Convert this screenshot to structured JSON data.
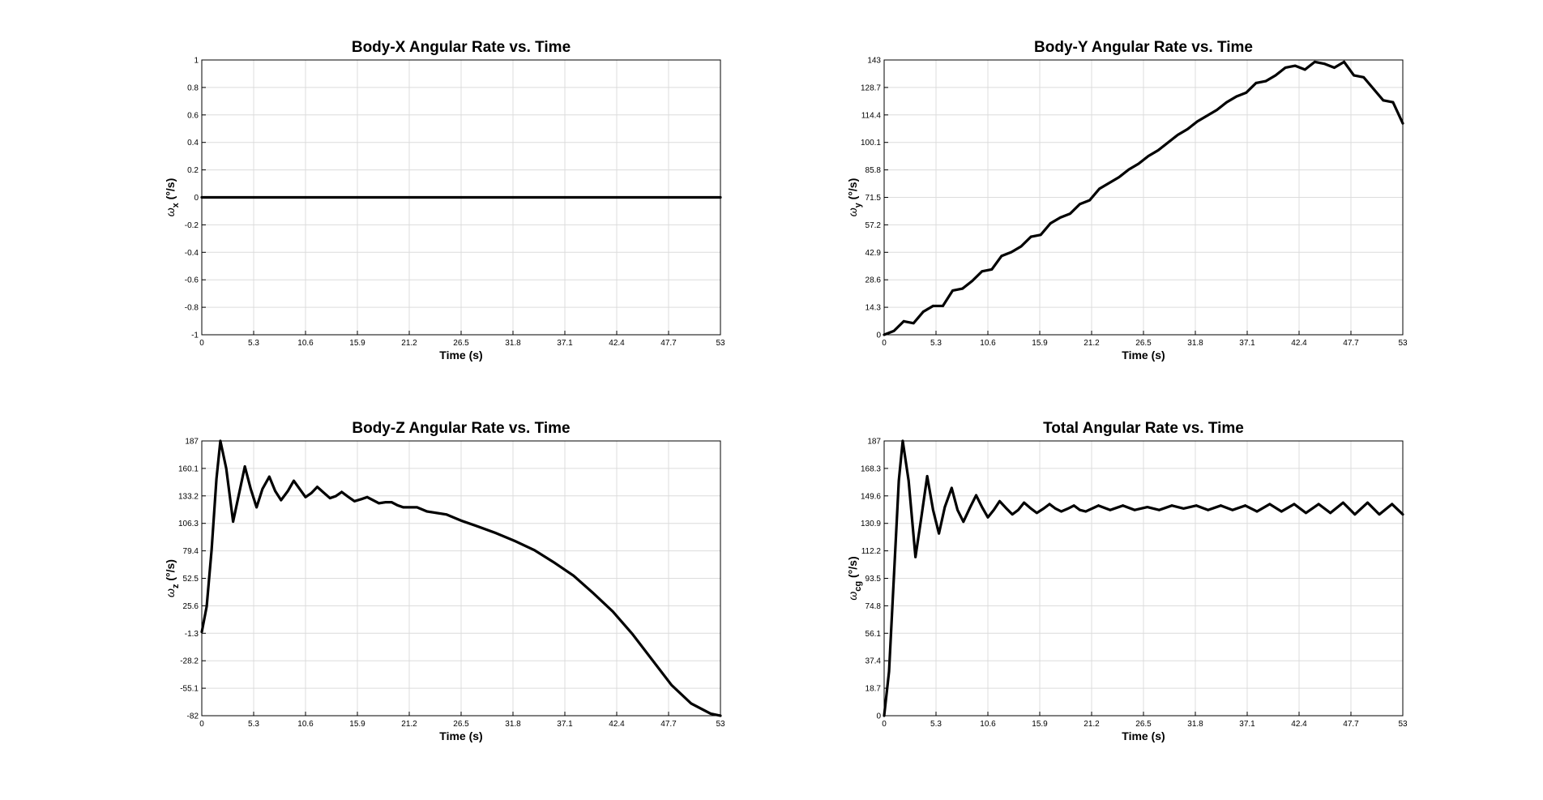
{
  "chart_data": [
    {
      "type": "line",
      "title": "Body-X Angular Rate vs. Time",
      "xlabel": "Time (s)",
      "ylabel": {
        "symbol": "ω",
        "subscript": "x",
        "unit": " (°/s)"
      },
      "color": "#000000",
      "grid": true,
      "xlim": [
        0,
        53
      ],
      "xticks": [
        0,
        5.3,
        10.6,
        15.9,
        21.2,
        26.5,
        31.8,
        37.1,
        42.4,
        47.7,
        53
      ],
      "ylim": [
        -1,
        1
      ],
      "yticks": [
        -1,
        -0.8,
        -0.6,
        -0.4,
        -0.2,
        0,
        0.2,
        0.4,
        0.6,
        0.8,
        1
      ],
      "x": [
        0,
        1,
        2,
        3,
        4,
        5,
        6,
        7,
        8,
        9,
        10,
        11,
        12,
        13,
        14,
        15,
        16,
        17,
        18,
        19,
        20,
        21,
        22,
        23,
        24,
        25,
        26,
        27,
        28,
        29,
        30,
        31,
        32,
        33,
        34,
        35,
        36,
        37,
        38,
        39,
        40,
        41,
        42,
        43,
        44,
        45,
        46,
        47,
        48,
        49,
        50,
        51,
        52,
        53
      ],
      "values": [
        0,
        0,
        0,
        0,
        0,
        0,
        0,
        0,
        0,
        0,
        0,
        0,
        0,
        0,
        0,
        0,
        0,
        0,
        0,
        0,
        0,
        0,
        0,
        0,
        0,
        0,
        0,
        0,
        0,
        0,
        0,
        0,
        0,
        0,
        0,
        0,
        0,
        0,
        0,
        0,
        0,
        0,
        0,
        0,
        0,
        0,
        0,
        0,
        0,
        0,
        0,
        0,
        0,
        0
      ]
    },
    {
      "type": "line",
      "title": "Body-Y Angular Rate vs. Time",
      "xlabel": "Time (s)",
      "ylabel": {
        "symbol": "ω",
        "subscript": "y",
        "unit": " (°/s)"
      },
      "color": "#000000",
      "grid": true,
      "xlim": [
        0,
        53
      ],
      "xticks": [
        0,
        5.3,
        10.6,
        15.9,
        21.2,
        26.5,
        31.8,
        37.1,
        42.4,
        47.7,
        53
      ],
      "ylim": [
        0,
        143
      ],
      "yticks": [
        0,
        14.3,
        28.6,
        42.9,
        57.2,
        71.5,
        85.8,
        100.1,
        114.4,
        128.7,
        143
      ],
      "x": [
        0,
        1,
        2,
        3,
        4,
        5,
        6,
        7,
        8,
        9,
        10,
        11,
        12,
        13,
        14,
        15,
        16,
        17,
        18,
        19,
        20,
        21,
        22,
        23,
        24,
        25,
        26,
        27,
        28,
        29,
        30,
        31,
        32,
        33,
        34,
        35,
        36,
        37,
        38,
        39,
        40,
        41,
        42,
        43,
        44,
        45,
        46,
        47,
        48,
        49,
        50,
        51,
        52,
        53
      ],
      "values": [
        0,
        2,
        7,
        6,
        12,
        15,
        15,
        23,
        24,
        28,
        33,
        34,
        41,
        43,
        46,
        51,
        52,
        58,
        61,
        63,
        68,
        70,
        76,
        79,
        82,
        86,
        89,
        93,
        96,
        100,
        104,
        107,
        111,
        114,
        117,
        121,
        124,
        126,
        131,
        132,
        135,
        139,
        140,
        138,
        142,
        141,
        139,
        142,
        135,
        134,
        128,
        122,
        121,
        110
      ]
    },
    {
      "type": "line",
      "title": "Body-Z Angular Rate vs. Time",
      "xlabel": "Time (s)",
      "ylabel": {
        "symbol": "ω",
        "subscript": "z",
        "unit": " (°/s)"
      },
      "color": "#000000",
      "grid": true,
      "xlim": [
        0,
        53
      ],
      "xticks": [
        0,
        5.3,
        10.6,
        15.9,
        21.2,
        26.5,
        31.8,
        37.1,
        42.4,
        47.7,
        53
      ],
      "ylim": [
        -82,
        187
      ],
      "yticks": [
        -82,
        -55.1,
        -28.2,
        -1.3,
        25.6,
        52.5,
        79.4,
        106.3,
        133.2,
        160.1,
        187
      ],
      "x": [
        0,
        0.5,
        1,
        1.5,
        1.9,
        2.5,
        3.2,
        3.8,
        4.4,
        5,
        5.6,
        6.2,
        6.9,
        7.5,
        8.1,
        8.8,
        9.4,
        10,
        10.6,
        11.2,
        11.8,
        12.5,
        13.1,
        13.7,
        14.3,
        15,
        15.6,
        16.3,
        16.9,
        17.5,
        18.1,
        18.8,
        19.4,
        20,
        20.6,
        22,
        23,
        25,
        26.5,
        28,
        30,
        32,
        34,
        36,
        38,
        40,
        42,
        44,
        46,
        48,
        50,
        52,
        53
      ],
      "values": [
        0,
        25,
        80,
        150,
        187,
        160,
        108,
        135,
        162,
        140,
        122,
        140,
        152,
        138,
        129,
        138,
        148,
        140,
        132,
        136,
        142,
        136,
        131,
        133,
        137,
        132,
        128,
        130,
        132,
        129,
        126,
        127,
        127,
        124,
        122,
        122,
        118,
        115,
        109,
        104,
        97,
        89,
        80,
        68,
        55,
        38,
        20,
        -2,
        -27,
        -52,
        -70,
        -80,
        -82
      ]
    },
    {
      "type": "line",
      "title": "Total Angular Rate vs. Time",
      "xlabel": "Time (s)",
      "ylabel": {
        "symbol": "ω",
        "subscript": "cg",
        "unit": " (°/s)"
      },
      "color": "#000000",
      "grid": true,
      "xlim": [
        0,
        53
      ],
      "xticks": [
        0,
        5.3,
        10.6,
        15.9,
        21.2,
        26.5,
        31.8,
        37.1,
        42.4,
        47.7,
        53
      ],
      "ylim": [
        0,
        187
      ],
      "yticks": [
        0,
        18.7,
        37.4,
        56.1,
        74.8,
        93.5,
        112.2,
        130.9,
        149.6,
        168.3,
        187
      ],
      "x": [
        0,
        0.5,
        1,
        1.5,
        1.9,
        2.5,
        3.2,
        3.8,
        4.4,
        5,
        5.6,
        6.2,
        6.9,
        7.5,
        8.1,
        8.8,
        9.4,
        10,
        10.6,
        11.2,
        11.8,
        12.5,
        13.1,
        13.7,
        14.3,
        15,
        15.6,
        16.3,
        16.9,
        17.5,
        18.1,
        18.8,
        19.4,
        20,
        20.6,
        21.9,
        23.1,
        24.4,
        25.6,
        26.9,
        28.1,
        29.4,
        30.6,
        31.9,
        33.1,
        34.4,
        35.6,
        36.9,
        38.1,
        39.4,
        40.6,
        41.9,
        43.1,
        44.4,
        45.6,
        46.9,
        48.1,
        49.4,
        50.6,
        51.9,
        53
      ],
      "values": [
        0,
        30,
        95,
        160,
        187,
        160,
        108,
        135,
        163,
        140,
        124,
        142,
        155,
        140,
        132,
        142,
        150,
        142,
        135,
        140,
        146,
        141,
        137,
        140,
        145,
        141,
        138,
        141,
        144,
        141,
        139,
        141,
        143,
        140,
        139,
        143,
        140,
        143,
        140,
        142,
        140,
        143,
        141,
        143,
        140,
        143,
        140,
        143,
        139,
        144,
        139,
        144,
        138,
        144,
        138,
        145,
        137,
        145,
        137,
        144,
        137
      ]
    }
  ]
}
